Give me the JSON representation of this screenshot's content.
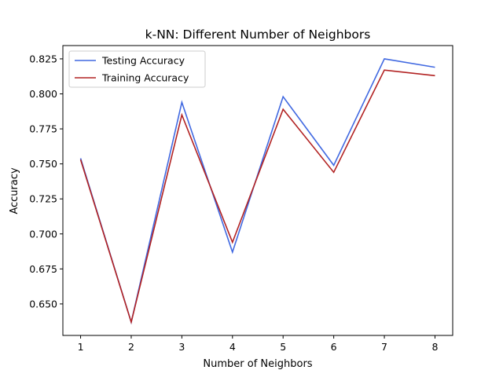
{
  "chart_data": {
    "type": "line",
    "title": "k-NN: Different Number of Neighbors",
    "xlabel": "Number of Neighbors",
    "ylabel": "Accuracy",
    "x": [
      1,
      2,
      3,
      4,
      5,
      6,
      7,
      8
    ],
    "xticks": [
      "1",
      "2",
      "3",
      "4",
      "5",
      "6",
      "7",
      "8"
    ],
    "yticks": [
      0.65,
      0.675,
      0.7,
      0.725,
      0.75,
      0.775,
      0.8,
      0.825
    ],
    "ytick_labels": [
      "0.650",
      "0.675",
      "0.700",
      "0.725",
      "0.750",
      "0.775",
      "0.800",
      "0.825"
    ],
    "xlim": [
      0.65,
      8.35
    ],
    "ylim": [
      0.6275,
      0.8345
    ],
    "grid": false,
    "legend_position": "top-left",
    "series": [
      {
        "name": "Testing Accuracy",
        "color": "#4169e1",
        "values": [
          0.754,
          0.637,
          0.794,
          0.687,
          0.798,
          0.749,
          0.825,
          0.819
        ]
      },
      {
        "name": "Training Accuracy",
        "color": "#b22222",
        "values": [
          0.753,
          0.637,
          0.785,
          0.694,
          0.789,
          0.744,
          0.817,
          0.813
        ]
      }
    ]
  }
}
